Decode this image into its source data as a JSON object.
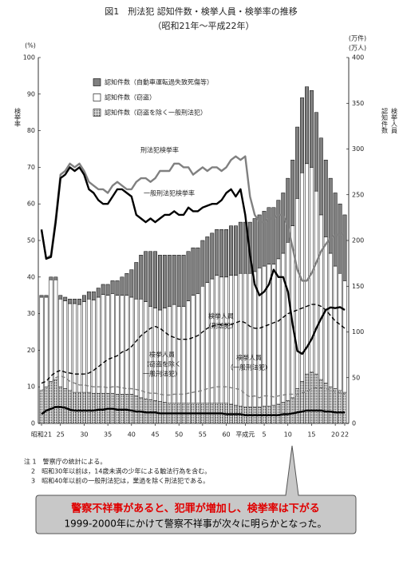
{
  "chart_data": {
    "type": "bar",
    "title": "図1　刑法犯 認知件数・検挙人員・検挙率の推移",
    "subtitle": "（昭和21年～平成22年）",
    "y_unit": "(%)",
    "y_label": "検挙率",
    "y2_units": [
      "(万件)",
      "(万人)"
    ],
    "y2_labels": [
      "認知件数",
      "検挙人員"
    ],
    "categories": [
      "昭和21",
      null,
      null,
      null,
      "25",
      null,
      null,
      null,
      null,
      "30",
      null,
      null,
      null,
      null,
      "35",
      null,
      null,
      null,
      null,
      "40",
      null,
      null,
      null,
      null,
      "45",
      null,
      null,
      null,
      null,
      "50",
      null,
      null,
      null,
      null,
      "55",
      null,
      null,
      null,
      null,
      "60",
      null,
      null,
      null,
      "平成元",
      null,
      null,
      null,
      "5",
      null,
      null,
      null,
      null,
      "10",
      null,
      null,
      null,
      null,
      "15",
      null,
      null,
      null,
      null,
      "20",
      null,
      "22"
    ],
    "ylim": [
      0,
      100
    ],
    "yticks": [
      0,
      10,
      20,
      30,
      40,
      50,
      60,
      70,
      80,
      90,
      100
    ],
    "y2lim": [
      0,
      400
    ],
    "y2ticks": [
      0,
      50,
      100,
      150,
      200,
      250,
      300,
      350,
      400
    ],
    "series": [
      {
        "name": "認知件数（自動車運転過失致死傷等）",
        "type": "bar",
        "axis": "y2",
        "color": "#808080",
        "values": [
          2,
          2,
          3,
          3,
          4,
          4,
          5,
          5,
          6,
          7,
          8,
          9,
          10,
          11,
          12,
          14,
          16,
          20,
          24,
          30,
          40,
          48,
          55,
          60,
          62,
          60,
          58,
          56,
          54,
          56,
          56,
          54,
          52,
          50,
          50,
          50,
          50,
          50,
          52,
          52,
          54,
          54,
          56,
          56,
          56,
          58,
          58,
          60,
          62,
          62,
          64,
          66,
          70,
          72,
          78,
          82,
          84,
          84,
          86,
          84,
          84,
          82,
          80,
          76,
          72
        ]
      },
      {
        "name": "認知件数（窃盗）",
        "type": "bar",
        "axis": "y2",
        "color": "#ffffff",
        "values": [
          102,
          98,
          111,
          109,
          96,
          96,
          95,
          97,
          96,
          99,
          102,
          102,
          105,
          108,
          107,
          109,
          108,
          108,
          108,
          106,
          106,
          108,
          106,
          102,
          101,
          100,
          103,
          106,
          108,
          106,
          106,
          112,
          118,
          120,
          128,
          132,
          136,
          140,
          138,
          138,
          141,
          142,
          145,
          146,
          146,
          148,
          152,
          153,
          155,
          154,
          159,
          163,
          173,
          188,
          208,
          228,
          230,
          224,
          200,
          180,
          160,
          146,
          134,
          128,
          122
        ]
      },
      {
        "name": "認知件数（窃盗を除く一般刑法犯）",
        "type": "bar",
        "axis": "y2",
        "color": "#404040",
        "pattern": "dots",
        "values": [
          36,
          40,
          46,
          48,
          40,
          38,
          36,
          34,
          34,
          34,
          34,
          33,
          33,
          33,
          33,
          33,
          32,
          32,
          32,
          32,
          30,
          28,
          27,
          26,
          25,
          24,
          23,
          22,
          22,
          22,
          22,
          22,
          22,
          22,
          22,
          22,
          22,
          22,
          22,
          22,
          21,
          20,
          19,
          18,
          18,
          18,
          18,
          19,
          19,
          20,
          21,
          23,
          25,
          28,
          38,
          46,
          54,
          56,
          54,
          48,
          44,
          40,
          38,
          36,
          34
        ]
      },
      {
        "name": [
          "刑法犯検挙率"
        ],
        "type": "line",
        "color": "#808080",
        "values": [
          53,
          45,
          46,
          56,
          68,
          69,
          71,
          70,
          71,
          69,
          66,
          65,
          64,
          64,
          63,
          65,
          66,
          65,
          64,
          64,
          66,
          67,
          67,
          66,
          67,
          69,
          69,
          69,
          71,
          71,
          70,
          70,
          68,
          69,
          70,
          69,
          70,
          70,
          69,
          70,
          72,
          73,
          72,
          73,
          62,
          57,
          55,
          55,
          56,
          56,
          57,
          57,
          54,
          48,
          42,
          39,
          39,
          41,
          44,
          47,
          49,
          50.7,
          51.6,
          51.5,
          52
        ]
      },
      {
        "name": [
          "一般刑法犯検挙率"
        ],
        "type": "line",
        "color": "#000000",
        "values": [
          53,
          45,
          45.5,
          55,
          67,
          68,
          70,
          69,
          70,
          68,
          64,
          63,
          61,
          60,
          60,
          62,
          64,
          64,
          63,
          62,
          57,
          56,
          55,
          56,
          55,
          56,
          57,
          57,
          58,
          57,
          57,
          59,
          58,
          58,
          59,
          59.5,
          60,
          60,
          61,
          63,
          64,
          62,
          64,
          57,
          46,
          38,
          35,
          36,
          38,
          42,
          40,
          40,
          36,
          27,
          19.8,
          19,
          20.8,
          23,
          26,
          28.6,
          31,
          31.7,
          31.5,
          31.8,
          31
        ]
      },
      {
        "name": [
          "検挙人員",
          "（刑法犯）"
        ],
        "type": "line",
        "axis": "y2",
        "color": "#000000",
        "dashed": true,
        "values": [
          44,
          46,
          52,
          56,
          58,
          56,
          55,
          54,
          54,
          54,
          55,
          58,
          62,
          66,
          70,
          72,
          74,
          78,
          80,
          84,
          90,
          96,
          100,
          104,
          106,
          104,
          100,
          96,
          94,
          92,
          92,
          92,
          94,
          96,
          100,
          104,
          106,
          108,
          108,
          108,
          108,
          110,
          112,
          110,
          106,
          104,
          104,
          106,
          108,
          110,
          112,
          116,
          120,
          122,
          124,
          126,
          128,
          130,
          130,
          128,
          124,
          118,
          112,
          108,
          104
        ]
      },
      {
        "name": [
          "検挙人員",
          "（一般刑法犯）"
        ],
        "type": "line",
        "axis": "y2",
        "color": "#808080",
        "dashed": true,
        "values": [
          36,
          38,
          44,
          50,
          52,
          50,
          46,
          44,
          42,
          42,
          41,
          40,
          40,
          40,
          39,
          40,
          40,
          39,
          38,
          38,
          37,
          36,
          34,
          33,
          33,
          32,
          31,
          31,
          32,
          32,
          32,
          33,
          34,
          35,
          36,
          38,
          39,
          40,
          40,
          40,
          39,
          38,
          37,
          32,
          29,
          30,
          28,
          30,
          30,
          29,
          30,
          31,
          32,
          32,
          31,
          33,
          35,
          38,
          39,
          39,
          38,
          37,
          34,
          33,
          32
        ]
      },
      {
        "name": [
          "検挙人員",
          "（窃盗を除く",
          "一般刑法犯）"
        ],
        "type": "line",
        "axis": "y2",
        "color": "#000000",
        "values": [
          10,
          14,
          16,
          18,
          18,
          17,
          15,
          14,
          14,
          14,
          14,
          14,
          15,
          15,
          16,
          16,
          15,
          15,
          15,
          14,
          13,
          13,
          12,
          12,
          12,
          11,
          11,
          11,
          11,
          11,
          11,
          11,
          11,
          11,
          11,
          11,
          11,
          11,
          11,
          10,
          10,
          10,
          10,
          9,
          9,
          9,
          9,
          9,
          9,
          9,
          9,
          10,
          10,
          11,
          12,
          13,
          14,
          14,
          14,
          14,
          13,
          13,
          12,
          12,
          12
        ]
      }
    ],
    "notes": [
      "注 1　警察庁の統計による。",
      "2　昭和30年以前は，14歳未満の少年による触法行為を含む。",
      "3　昭和40年以前の一般刑法犯は，業過を除く刑法犯である。"
    ]
  },
  "callout": {
    "headline": "警察不祥事があると、犯罪が増加し、検挙率は下がる",
    "text": "1999-2000年にかけて警察不祥事が次々に明らかとなった。"
  }
}
